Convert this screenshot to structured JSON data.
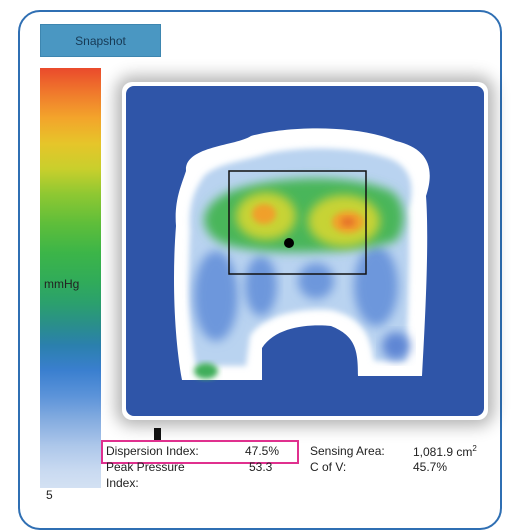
{
  "toolbar": {
    "snapshot_label": "Snapshot"
  },
  "scale": {
    "unit": "mmHg",
    "min_value": "5"
  },
  "stats": {
    "dispersion_index": {
      "label": "Dispersion Index:",
      "value": "47.5%"
    },
    "sensing_area": {
      "label": "Sensing Area:",
      "value": "1,081.9 cm",
      "unit_sup": "2"
    },
    "peak_pressure_index": {
      "label_line1": "Peak Pressure",
      "label_line2": "Index:",
      "value": "53.3"
    },
    "c_of_v": {
      "label": "C of V:",
      "value": "45.7%"
    }
  },
  "colors": {
    "frame": "#2f6fb3",
    "button": "#4a97c2",
    "map_background": "#2f55a8",
    "highlight": "#e0308e"
  }
}
